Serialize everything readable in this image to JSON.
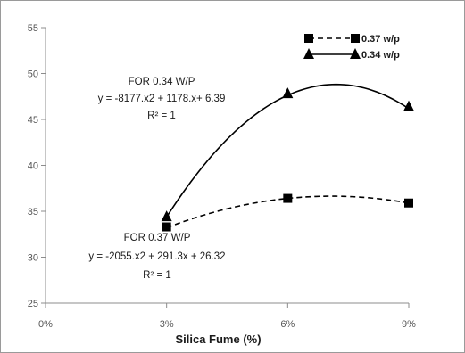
{
  "chart_data": {
    "type": "line",
    "title": "",
    "xlabel": "Silica Fume (%)",
    "ylabel": "",
    "x": [
      0.03,
      0.06,
      0.09
    ],
    "x_tick_values": [
      0,
      0.03,
      0.06,
      0.09
    ],
    "x_tick_labels": [
      "0%",
      "3%",
      "6%",
      "9%"
    ],
    "xlim": [
      0,
      0.09
    ],
    "ylim": [
      25,
      55
    ],
    "y_ticks": [
      25,
      30,
      35,
      40,
      45,
      50,
      55
    ],
    "series": [
      {
        "name": "0.37 w/p",
        "values": [
          33.3,
          36.4,
          35.9
        ],
        "color": "#000000",
        "marker": "square",
        "line_style": "dashed",
        "trend": {
          "a": -2055,
          "b": 291.3,
          "c": 26.32
        }
      },
      {
        "name": "0.34 w/p",
        "values": [
          34.4,
          47.8,
          46.4
        ],
        "color": "#000000",
        "marker": "triangle",
        "line_style": "solid",
        "trend": {
          "a": -8177,
          "b": 1178,
          "c": 6.39
        }
      }
    ],
    "annotations": [
      {
        "lines": [
          "FOR 0.34 W/P",
          "y = -8177.x2 + 1178.x+ 6.39",
          "R² = 1"
        ]
      },
      {
        "lines": [
          "FOR 0.37 W/P",
          "y = -2055.x2 + 291.3x + 26.32",
          "R² = 1"
        ]
      }
    ],
    "grid": false,
    "legend_position": "top-right"
  }
}
